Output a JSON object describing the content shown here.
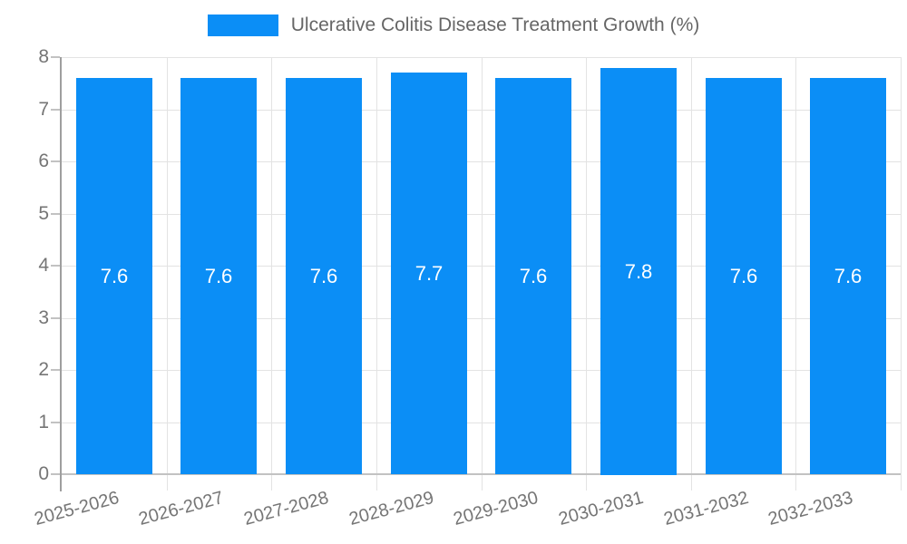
{
  "legend": {
    "label": "Ulcerative Colitis Disease Treatment Growth (%)"
  },
  "chart_data": {
    "type": "bar",
    "title": "Ulcerative Colitis Disease Treatment Growth (%)",
    "categories": [
      "2025-2026",
      "2026-2027",
      "2027-2028",
      "2028-2029",
      "2029-2030",
      "2030-2031",
      "2031-2032",
      "2032-2033"
    ],
    "values": [
      7.6,
      7.6,
      7.6,
      7.7,
      7.6,
      7.8,
      7.6,
      7.6
    ],
    "value_labels": [
      "7.6",
      "7.6",
      "7.6",
      "7.7",
      "7.6",
      "7.8",
      "7.6",
      "7.6"
    ],
    "y_ticks": [
      0,
      1,
      2,
      3,
      4,
      5,
      6,
      7,
      8
    ],
    "ylim": [
      0,
      8
    ],
    "xlabel": "",
    "ylabel": "",
    "legend_position": "top",
    "grid": true,
    "colors": {
      "bar": "#0b8ef6",
      "value_label": "#ffffff",
      "grid": "#e3e3e3",
      "axis": "#9e9e9e",
      "baseline": "#c2c2c2",
      "tick_text": "#757575",
      "legend_text": "#666666"
    }
  }
}
